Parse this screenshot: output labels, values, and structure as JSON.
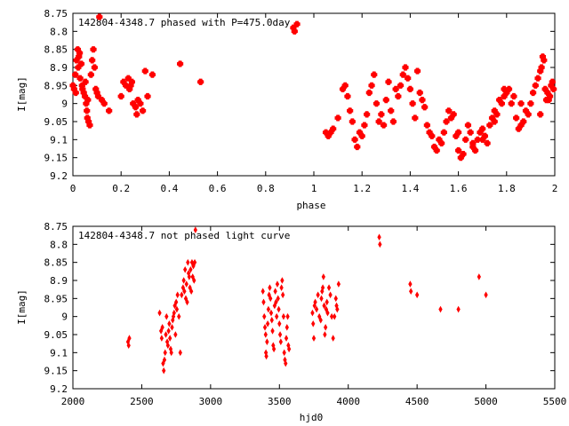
{
  "chart_data": [
    {
      "type": "scatter",
      "title": "142804-4348.7 phased with P=475.0day",
      "xlabel": "phase",
      "ylabel": "I[mag]",
      "xlim": [
        0,
        2
      ],
      "ylim": [
        9.2,
        8.75
      ],
      "y_inverted": true,
      "grid": false,
      "legend": "none",
      "marker_color": "#ff0000",
      "x_ticks": [
        0,
        0.2,
        0.4,
        0.6,
        0.8,
        1,
        1.2,
        1.4,
        1.6,
        1.8,
        2
      ],
      "x_tick_labels": [
        "0",
        "0.2",
        "0.4",
        "0.6",
        "0.8",
        "1",
        "1.2",
        "1.4",
        "1.6",
        "1.8",
        "2"
      ],
      "y_ticks": [
        8.75,
        8.8,
        8.85,
        8.9,
        8.95,
        9,
        9.05,
        9.1,
        9.15,
        9.2
      ],
      "y_tick_labels": [
        "8.75",
        "8.8",
        "8.85",
        "8.9",
        "8.95",
        "9",
        "9.05",
        "9.1",
        "9.15",
        "9.2"
      ],
      "points": [
        [
          0.0,
          8.95
        ],
        [
          0.005,
          8.96
        ],
        [
          0.01,
          8.92
        ],
        [
          0.012,
          8.97
        ],
        [
          0.015,
          8.88
        ],
        [
          0.02,
          8.85
        ],
        [
          0.022,
          8.9
        ],
        [
          0.025,
          8.87
        ],
        [
          0.028,
          8.86
        ],
        [
          0.03,
          8.93
        ],
        [
          0.035,
          8.89
        ],
        [
          0.038,
          8.95
        ],
        [
          0.04,
          8.96
        ],
        [
          0.045,
          8.97
        ],
        [
          0.05,
          8.98
        ],
        [
          0.052,
          8.94
        ],
        [
          0.055,
          9.0
        ],
        [
          0.058,
          9.02
        ],
        [
          0.06,
          9.04
        ],
        [
          0.062,
          8.99
        ],
        [
          0.065,
          9.05
        ],
        [
          0.07,
          9.06
        ],
        [
          0.075,
          8.92
        ],
        [
          0.08,
          8.88
        ],
        [
          0.085,
          8.85
        ],
        [
          0.09,
          8.9
        ],
        [
          0.095,
          8.96
        ],
        [
          0.1,
          8.97
        ],
        [
          0.105,
          8.98
        ],
        [
          0.11,
          8.76
        ],
        [
          0.12,
          8.99
        ],
        [
          0.13,
          9.0
        ],
        [
          0.15,
          9.02
        ],
        [
          0.2,
          8.98
        ],
        [
          0.21,
          8.94
        ],
        [
          0.22,
          8.95
        ],
        [
          0.23,
          8.93
        ],
        [
          0.235,
          8.96
        ],
        [
          0.24,
          8.95
        ],
        [
          0.245,
          8.94
        ],
        [
          0.25,
          9.0
        ],
        [
          0.26,
          9.01
        ],
        [
          0.265,
          9.03
        ],
        [
          0.27,
          8.99
        ],
        [
          0.28,
          9.0
        ],
        [
          0.29,
          9.02
        ],
        [
          0.3,
          8.91
        ],
        [
          0.31,
          8.98
        ],
        [
          0.33,
          8.92
        ],
        [
          0.445,
          8.89
        ],
        [
          0.53,
          8.94
        ],
        [
          0.915,
          8.79
        ],
        [
          0.92,
          8.8
        ],
        [
          0.93,
          8.78
        ],
        [
          1.05,
          9.08
        ],
        [
          1.06,
          9.09
        ],
        [
          1.07,
          9.08
        ],
        [
          1.08,
          9.07
        ],
        [
          1.1,
          9.04
        ],
        [
          1.12,
          8.96
        ],
        [
          1.13,
          8.95
        ],
        [
          1.14,
          8.98
        ],
        [
          1.15,
          9.02
        ],
        [
          1.16,
          9.05
        ],
        [
          1.17,
          9.1
        ],
        [
          1.18,
          9.12
        ],
        [
          1.19,
          9.08
        ],
        [
          1.2,
          9.09
        ],
        [
          1.21,
          9.06
        ],
        [
          1.22,
          9.03
        ],
        [
          1.23,
          8.97
        ],
        [
          1.24,
          8.95
        ],
        [
          1.25,
          8.92
        ],
        [
          1.26,
          9.0
        ],
        [
          1.27,
          9.05
        ],
        [
          1.28,
          9.03
        ],
        [
          1.29,
          9.06
        ],
        [
          1.3,
          8.99
        ],
        [
          1.31,
          8.94
        ],
        [
          1.32,
          9.02
        ],
        [
          1.33,
          9.05
        ],
        [
          1.34,
          8.96
        ],
        [
          1.35,
          8.98
        ],
        [
          1.36,
          8.95
        ],
        [
          1.37,
          8.92
        ],
        [
          1.38,
          8.9
        ],
        [
          1.39,
          8.93
        ],
        [
          1.4,
          8.96
        ],
        [
          1.41,
          9.0
        ],
        [
          1.42,
          9.04
        ],
        [
          1.43,
          8.91
        ],
        [
          1.44,
          8.97
        ],
        [
          1.45,
          8.99
        ],
        [
          1.46,
          9.01
        ],
        [
          1.47,
          9.06
        ],
        [
          1.48,
          9.08
        ],
        [
          1.49,
          9.09
        ],
        [
          1.5,
          9.12
        ],
        [
          1.51,
          9.13
        ],
        [
          1.52,
          9.1
        ],
        [
          1.53,
          9.11
        ],
        [
          1.54,
          9.08
        ],
        [
          1.55,
          9.05
        ],
        [
          1.56,
          9.02
        ],
        [
          1.57,
          9.04
        ],
        [
          1.58,
          9.03
        ],
        [
          1.59,
          9.09
        ],
        [
          1.6,
          9.13
        ],
        [
          1.61,
          9.15
        ],
        [
          1.62,
          9.14
        ],
        [
          1.63,
          9.1
        ],
        [
          1.64,
          9.06
        ],
        [
          1.65,
          9.08
        ],
        [
          1.66,
          9.12
        ],
        [
          1.67,
          9.13
        ],
        [
          1.68,
          9.1
        ],
        [
          1.69,
          9.08
        ],
        [
          1.7,
          9.07
        ],
        [
          1.71,
          9.09
        ],
        [
          1.72,
          9.11
        ],
        [
          1.73,
          9.06
        ],
        [
          1.74,
          9.04
        ],
        [
          1.75,
          9.02
        ],
        [
          1.76,
          9.03
        ],
        [
          1.77,
          8.99
        ],
        [
          1.78,
          9.0
        ],
        [
          1.79,
          8.98
        ],
        [
          1.8,
          8.97
        ],
        [
          1.81,
          8.96
        ],
        [
          1.82,
          9.0
        ],
        [
          1.83,
          8.98
        ],
        [
          1.84,
          9.04
        ],
        [
          1.85,
          9.07
        ],
        [
          1.86,
          9.06
        ],
        [
          1.87,
          9.05
        ],
        [
          1.88,
          9.02
        ],
        [
          1.89,
          9.03
        ],
        [
          1.9,
          9.0
        ],
        [
          1.91,
          8.97
        ],
        [
          1.92,
          8.95
        ],
        [
          1.93,
          8.93
        ],
        [
          1.94,
          8.91
        ],
        [
          1.945,
          8.9
        ],
        [
          1.95,
          8.87
        ],
        [
          1.955,
          8.88
        ],
        [
          1.96,
          8.96
        ],
        [
          1.97,
          8.97
        ],
        [
          1.975,
          8.99
        ],
        [
          1.98,
          8.98
        ],
        [
          1.99,
          8.94
        ],
        [
          1.995,
          8.96
        ],
        [
          1.985,
          8.95
        ],
        [
          1.965,
          8.99
        ],
        [
          1.94,
          9.03
        ],
        [
          1.86,
          9.0
        ],
        [
          1.79,
          8.96
        ],
        [
          1.75,
          9.05
        ],
        [
          1.7,
          9.1
        ],
        [
          1.66,
          9.11
        ],
        [
          1.6,
          9.08
        ]
      ]
    },
    {
      "type": "scatter",
      "title": "142804-4348.7 not phased light curve",
      "xlabel": "hjd0",
      "ylabel": "I[mag]",
      "xlim": [
        2000,
        5500
      ],
      "ylim": [
        9.2,
        8.75
      ],
      "y_inverted": true,
      "grid": false,
      "legend": "none",
      "marker_color": "#ff0000",
      "x_ticks": [
        2000,
        2500,
        3000,
        3500,
        4000,
        4500,
        5000,
        5500
      ],
      "x_tick_labels": [
        "2000",
        "2500",
        "3000",
        "3500",
        "4000",
        "4500",
        "5000",
        "5500"
      ],
      "y_ticks": [
        8.75,
        8.8,
        8.85,
        8.9,
        8.95,
        9,
        9.05,
        9.1,
        9.15,
        9.2
      ],
      "y_tick_labels": [
        "8.75",
        "8.8",
        "8.85",
        "8.9",
        "8.95",
        "9",
        "9.05",
        "9.1",
        "9.15",
        "9.2"
      ],
      "points": [
        [
          2400,
          9.07
        ],
        [
          2405,
          9.08
        ],
        [
          2410,
          9.06
        ],
        [
          2630,
          8.99
        ],
        [
          2640,
          9.04
        ],
        [
          2645,
          9.06
        ],
        [
          2650,
          9.03
        ],
        [
          2655,
          9.13
        ],
        [
          2660,
          9.15
        ],
        [
          2665,
          9.12
        ],
        [
          2670,
          9.1
        ],
        [
          2675,
          9.05
        ],
        [
          2680,
          9.0
        ],
        [
          2685,
          9.07
        ],
        [
          2690,
          9.08
        ],
        [
          2695,
          9.04
        ],
        [
          2700,
          9.02
        ],
        [
          2705,
          9.06
        ],
        [
          2710,
          9.09
        ],
        [
          2715,
          9.1
        ],
        [
          2720,
          9.03
        ],
        [
          2725,
          9.01
        ],
        [
          2730,
          9.0
        ],
        [
          2735,
          8.99
        ],
        [
          2740,
          8.97
        ],
        [
          2745,
          9.05
        ],
        [
          2750,
          8.96
        ],
        [
          2755,
          8.98
        ],
        [
          2760,
          8.94
        ],
        [
          2770,
          9.0
        ],
        [
          2780,
          9.1
        ],
        [
          2790,
          8.94
        ],
        [
          2800,
          8.92
        ],
        [
          2805,
          8.9
        ],
        [
          2810,
          8.93
        ],
        [
          2815,
          8.87
        ],
        [
          2820,
          8.95
        ],
        [
          2825,
          8.91
        ],
        [
          2830,
          8.96
        ],
        [
          2835,
          8.85
        ],
        [
          2840,
          8.88
        ],
        [
          2845,
          8.89
        ],
        [
          2850,
          8.92
        ],
        [
          2855,
          8.87
        ],
        [
          2860,
          8.93
        ],
        [
          2865,
          8.85
        ],
        [
          2870,
          8.89
        ],
        [
          2875,
          8.86
        ],
        [
          2880,
          8.9
        ],
        [
          2885,
          8.85
        ],
        [
          2890,
          8.76
        ],
        [
          3380,
          8.93
        ],
        [
          3385,
          8.96
        ],
        [
          3390,
          9.0
        ],
        [
          3395,
          9.03
        ],
        [
          3400,
          9.05
        ],
        [
          3402,
          9.1
        ],
        [
          3405,
          9.11
        ],
        [
          3410,
          9.07
        ],
        [
          3415,
          9.02
        ],
        [
          3420,
          8.98
        ],
        [
          3425,
          8.94
        ],
        [
          3430,
          8.92
        ],
        [
          3435,
          8.95
        ],
        [
          3440,
          8.99
        ],
        [
          3445,
          9.01
        ],
        [
          3450,
          9.04
        ],
        [
          3455,
          9.08
        ],
        [
          3460,
          9.09
        ],
        [
          3465,
          8.97
        ],
        [
          3470,
          8.93
        ],
        [
          3475,
          8.96
        ],
        [
          3480,
          9.0
        ],
        [
          3485,
          8.91
        ],
        [
          3490,
          8.95
        ],
        [
          3495,
          8.98
        ],
        [
          3500,
          9.02
        ],
        [
          3505,
          9.05
        ],
        [
          3510,
          9.07
        ],
        [
          3515,
          8.92
        ],
        [
          3520,
          8.9
        ],
        [
          3525,
          8.94
        ],
        [
          3530,
          9.0
        ],
        [
          3535,
          9.1
        ],
        [
          3540,
          9.12
        ],
        [
          3545,
          9.13
        ],
        [
          3550,
          9.06
        ],
        [
          3555,
          9.03
        ],
        [
          3560,
          9.0
        ],
        [
          3565,
          9.08
        ],
        [
          3570,
          9.09
        ],
        [
          3740,
          8.99
        ],
        [
          3745,
          9.02
        ],
        [
          3750,
          9.06
        ],
        [
          3755,
          8.97
        ],
        [
          3760,
          8.96
        ],
        [
          3770,
          8.98
        ],
        [
          3780,
          8.94
        ],
        [
          3790,
          9.0
        ],
        [
          3800,
          9.01
        ],
        [
          3805,
          8.95
        ],
        [
          3810,
          8.93
        ],
        [
          3815,
          8.92
        ],
        [
          3820,
          8.89
        ],
        [
          3825,
          8.97
        ],
        [
          3830,
          9.05
        ],
        [
          3835,
          9.03
        ],
        [
          3840,
          8.98
        ],
        [
          3845,
          8.96
        ],
        [
          3850,
          8.99
        ],
        [
          3860,
          8.92
        ],
        [
          3870,
          8.94
        ],
        [
          3880,
          9.0
        ],
        [
          3890,
          9.06
        ],
        [
          3900,
          9.0
        ],
        [
          3910,
          8.95
        ],
        [
          3915,
          8.97
        ],
        [
          3920,
          8.98
        ],
        [
          3930,
          8.91
        ],
        [
          4225,
          8.78
        ],
        [
          4230,
          8.8
        ],
        [
          4450,
          8.91
        ],
        [
          4455,
          8.93
        ],
        [
          4500,
          8.94
        ],
        [
          4670,
          8.98
        ],
        [
          4800,
          8.98
        ],
        [
          4950,
          8.89
        ],
        [
          5000,
          8.94
        ]
      ]
    }
  ]
}
